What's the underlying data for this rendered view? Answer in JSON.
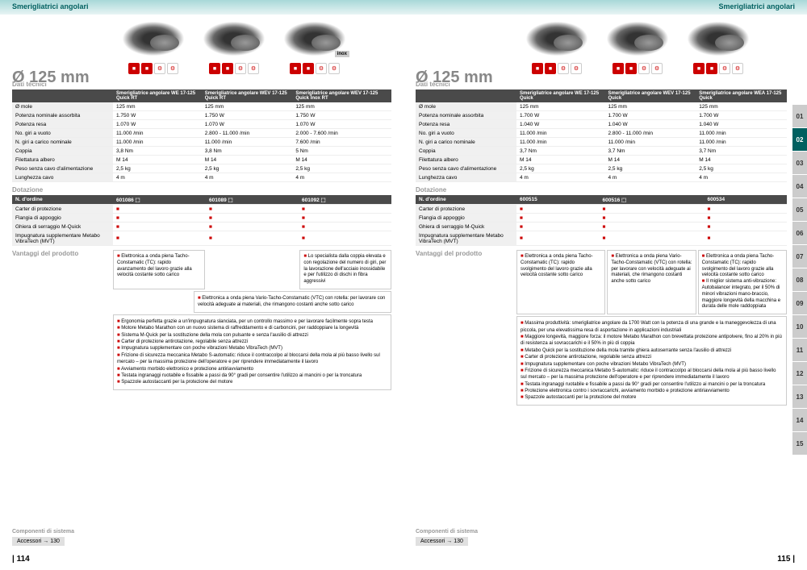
{
  "header": "Smerigliatrici angolari",
  "diameter": "Ø 125 mm",
  "sect_tech": "Dati tecnici",
  "sect_dot": "Dotazione",
  "sect_adv": "Vantaggi del prodotto",
  "sect_comp": "Componenti di sistema",
  "accessori": "Accessori → 130",
  "pg_l": "| 114",
  "pg_r": "115 |",
  "specs": [
    "Ø mole",
    "Potenza nominale assorbita",
    "Potenza resa",
    "No. giri a vuoto",
    "N. giri a carico nominale",
    "Coppia",
    "Filettatura albero",
    "Peso senza cavo d'alimentazione",
    "Lunghezza cavo"
  ],
  "dot": [
    "N. d'ordine",
    "Carter di protezione",
    "Flangia di appoggio",
    "Ghiera di serraggio M-Quick",
    "Impugnatura supplementare Metabo VibraTech (MVT)"
  ],
  "left": {
    "products": [
      {
        "name": "Smerigliatrice angolare WE 17-125 Quick RT",
        "vals": [
          "125 mm",
          "1.750 W",
          "1.070 W",
          "11.000 /min",
          "11.000 /min",
          "3,8 Nm",
          "M 14",
          "2,5 kg",
          "4 m"
        ],
        "ord": "601086 ⬚",
        "inox": false
      },
      {
        "name": "Smerigliatrice angolare WEV 17-125 Quick RT",
        "vals": [
          "125 mm",
          "1.750 W",
          "1.070 W",
          "2.800 - 11.000 /min",
          "11.000 /min",
          "3,8 Nm",
          "M 14",
          "2,5 kg",
          "4 m"
        ],
        "ord": "601089 ⬚",
        "inox": false
      },
      {
        "name": "Smerigliatrice angolare WEV 17-125 Quick Inox RT",
        "vals": [
          "125 mm",
          "1.750 W",
          "1.070 W",
          "2.000 - 7.600 /min",
          "7.600 /min",
          "5 Nm",
          "M 14",
          "2,5 kg",
          "4 m"
        ],
        "ord": "601092 ⬚",
        "inox": true
      }
    ],
    "adv1": "Elettronica a onda piena Tacho-Constamatic (TC): rapido avanzamento del lavoro grazie alla velocità costante sotto carico",
    "adv3": "Lo specialista dalla coppia elevata e con regolazione del numero di giri, per la lavorazione dell'acciaio inossidabile e per l'utilizzo di dischi in fibra aggressivi",
    "adv_vtc": "Elettronica a onda piena Vario-Tacho-Constamatic (VTC) con rotella: per lavorare con velocità adeguate ai materiali, che rimangono costanti anche sotto carico",
    "full": [
      "Ergonomia perfetta grazie a un'impugnatura slanciata, per un controllo massimo e per lavorare facilmente sopra testa",
      "Motore Metabo Marathon con un nuovo sistema di raffreddamento e di carboncini, per raddoppiare la longevità",
      "Sistema M-Quick per la sostituzione della mola con pulsante e senza l'ausilio di attrezzi",
      "Carter di protezione antirotazione, regolabile senza attrezzi",
      "Impugnatura supplementare con poche vibrazioni Metabo VibraTech (MVT)",
      "Frizione di sicurezza meccanica Metabo S-automatic: riduce il contraccolpo al bloccarsi della mola al più basso livello sul mercato – per la massima protezione dell'operatore e per riprendere immediatamente il lavoro",
      "Avviamento morbido elettronico e protezione antiriavviamento",
      "Testata ingranaggi ruotabile e fissabile a passi da 90° gradi per consentire l'utilizzo ai mancini o per la troncatura",
      "Spazzole autostaccanti per la protezione del motore"
    ]
  },
  "right": {
    "products": [
      {
        "name": "Smerigliatrice angolare WE 17-125 Quick",
        "vals": [
          "125 mm",
          "1.700 W",
          "1.040 W",
          "11.000 /min",
          "11.000 /min",
          "3,7 Nm",
          "M 14",
          "2,5 kg",
          "4 m"
        ],
        "ord": "600515"
      },
      {
        "name": "Smerigliatrice angolare WEV 17-125 Quick",
        "vals": [
          "125 mm",
          "1.700 W",
          "1.040 W",
          "2.800 - 11.000 /min",
          "11.000 /min",
          "3,7 Nm",
          "M 14",
          "2,5 kg",
          "4 m"
        ],
        "ord": "600516 ⬚"
      },
      {
        "name": "Smerigliatrice angolare WEA 17-125 Quick",
        "vals": [
          "125 mm",
          "1.700 W",
          "1.040 W",
          "11.000 /min",
          "11.000 /min",
          "3,7 Nm",
          "M 14",
          "2,5 kg",
          "4 m"
        ],
        "ord": "600534"
      }
    ],
    "adv1": "Elettronica a onda piena Tacho-Constamatic (TC): rapido svolgimento del lavoro grazie alla velocità costante sotto carico",
    "adv2": "Elettronica a onda piena Vario-Tacho-Constamatic (VTC) con rotella: per lavorare con velocità adeguate ai materiali, che rimangono costanti anche sotto carico",
    "adv3": "Elettronica a onda piena Tacho-Constamatic (TC): rapido svolgimento del lavoro grazie alla velocità costante sotto carico\nIl miglior sistema anti-vibrazione: Autobalancer integrato, per il 50% di minori vibrazioni mano-braccio, maggiore longevità della macchina e durata delle mole raddoppiata",
    "full": [
      "Massima produttività: smerigliatrice angolare da 1700 Watt con la potenza di una grande e la maneggevolezza di una piccola, per una elevatissima resa di asportazione in applicazioni industriali",
      "Maggiore longevità, maggiore forza: il motore Metabo Marathon con brevettata protezione antipolvere, fino al 20% in più di resistenza ai sovraccarichi e il 50% in più di coppia",
      "Metabo Quick per la sostituzione della mola tramite ghiera autoserrante senza l'ausilio di attrezzi",
      "Carter di protezione antirotazione, regolabile senza attrezzi",
      "Impugnatura supplementare con poche vibrazioni Metabo VibraTech (MVT)",
      "Frizione di sicurezza meccanica Metabo S-automatic: riduce il contraccolpo al bloccarsi della mola al più basso livello sul mercato – per la massima protezione dell'operatore e per riprendere immediatamente il lavoro",
      "Testata ingranaggi ruotabile e fissabile a passi da 90° gradi per consentire l'utilizzo ai mancini o per la troncatura",
      "Protezione elettronica contro i sovraccarichi, avviamento morbido e protezione antiriavviamento",
      "Spazzole autostaccanti per la protezione del motore"
    ]
  },
  "tabs": [
    "01",
    "02",
    "03",
    "04",
    "05",
    "06",
    "07",
    "08",
    "09",
    "10",
    "11",
    "12",
    "13",
    "14",
    "15"
  ],
  "tab_active": 1,
  "colors": {
    "header_grad_top": "#a8d8d8",
    "header_grad_bot": "#e8f4f4",
    "accent": "#c00",
    "dark_row": "#4a4a4a",
    "tab_active": "#006060",
    "tab_inactive": "#ccc"
  }
}
